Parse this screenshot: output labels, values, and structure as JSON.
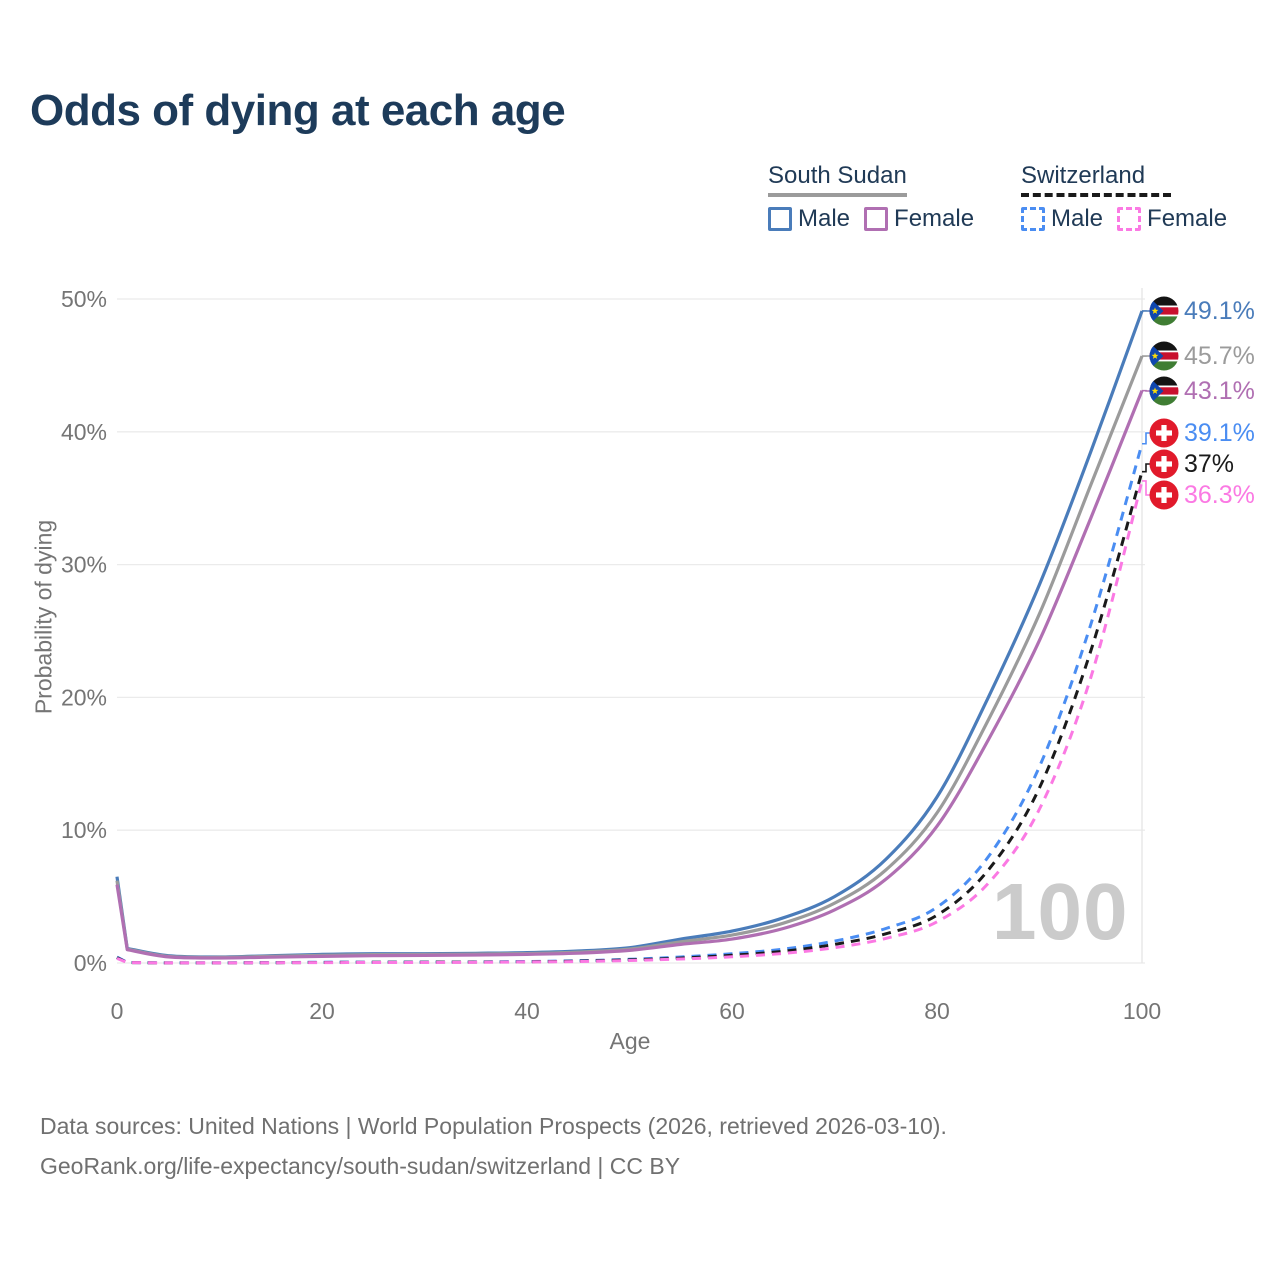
{
  "title": "Odds of dying at each age",
  "legend": {
    "groups": [
      {
        "title": "South Sudan",
        "series_key": "ss_both",
        "items": [
          {
            "label": "Male",
            "series_key": "ss_male"
          },
          {
            "label": "Female",
            "series_key": "ss_female"
          }
        ]
      },
      {
        "title": "Switzerland",
        "series_key": "ch_both",
        "items": [
          {
            "label": "Male",
            "series_key": "ch_male"
          },
          {
            "label": "Female",
            "series_key": "ch_female"
          }
        ]
      }
    ]
  },
  "watermark": "100",
  "y_axis_label": "Probability of dying",
  "x_axis_label": "Age",
  "footer": {
    "line1": "Data sources: United Nations | World Population Prospects (2026, retrieved 2026-03-10).",
    "line2": "GeoRank.org/life-expectancy/south-sudan/switzerland | CC BY"
  },
  "chart_data": {
    "type": "line",
    "title": "Odds of dying at each age",
    "xlabel": "Age",
    "ylabel": "Probability of dying",
    "x_ticks": [
      0,
      20,
      40,
      60,
      80,
      100
    ],
    "y_ticks": [
      "0%",
      "10%",
      "20%",
      "30%",
      "40%",
      "50%"
    ],
    "xlim": [
      0,
      100
    ],
    "ylim_percent": [
      0,
      50
    ],
    "grid": "horizontal",
    "ages": [
      0,
      1,
      5,
      10,
      15,
      20,
      25,
      30,
      35,
      40,
      45,
      50,
      55,
      60,
      65,
      70,
      75,
      80,
      85,
      90,
      95,
      100
    ],
    "series": [
      {
        "id": "ss_male",
        "country": "South Sudan",
        "sex": "Male",
        "color": "#4a7cba",
        "dashed": false,
        "flag": "south-sudan",
        "end_label": "49.1%",
        "values": [
          6.5,
          1.1,
          0.55,
          0.45,
          0.55,
          0.65,
          0.7,
          0.7,
          0.73,
          0.78,
          0.9,
          1.15,
          1.8,
          2.4,
          3.4,
          5.0,
          7.8,
          12.5,
          20.0,
          28.5,
          38.5,
          49.1
        ]
      },
      {
        "id": "ss_both",
        "country": "South Sudan",
        "sex": "Both sexes",
        "color": "#9b9b9b",
        "dashed": false,
        "flag": "south-sudan",
        "end_label": "45.7%",
        "values": [
          6.2,
          1.05,
          0.5,
          0.42,
          0.5,
          0.58,
          0.63,
          0.64,
          0.67,
          0.71,
          0.82,
          1.05,
          1.6,
          2.1,
          3.0,
          4.5,
          7.0,
          11.3,
          18.3,
          26.3,
          36.0,
          45.7
        ]
      },
      {
        "id": "ss_female",
        "country": "South Sudan",
        "sex": "Female",
        "color": "#b06fb2",
        "dashed": false,
        "flag": "south-sudan",
        "end_label": "43.1%",
        "values": [
          5.9,
          1.0,
          0.46,
          0.38,
          0.44,
          0.5,
          0.55,
          0.57,
          0.6,
          0.65,
          0.74,
          0.95,
          1.4,
          1.8,
          2.6,
          4.0,
          6.3,
          10.3,
          16.8,
          24.3,
          33.5,
          43.1
        ]
      },
      {
        "id": "ch_male",
        "country": "Switzerland",
        "sex": "Male",
        "color": "#4a8df2",
        "dashed": true,
        "flag": "switzerland",
        "end_label": "39.1%",
        "values": [
          0.45,
          0.04,
          0.01,
          0.01,
          0.03,
          0.06,
          0.06,
          0.07,
          0.08,
          0.11,
          0.17,
          0.28,
          0.45,
          0.7,
          1.05,
          1.65,
          2.6,
          4.2,
          8.0,
          14.8,
          25.5,
          39.1
        ]
      },
      {
        "id": "ch_both",
        "country": "Switzerland",
        "sex": "Both sexes",
        "color": "#1a1a1a",
        "dashed": true,
        "flag": "switzerland",
        "end_label": "37%",
        "values": [
          0.4,
          0.03,
          0.01,
          0.01,
          0.02,
          0.04,
          0.05,
          0.06,
          0.07,
          0.09,
          0.14,
          0.23,
          0.37,
          0.58,
          0.88,
          1.4,
          2.2,
          3.6,
          7.0,
          13.2,
          23.5,
          37.0
        ]
      },
      {
        "id": "ch_female",
        "country": "Switzerland",
        "sex": "Female",
        "color": "#fb79e3",
        "dashed": true,
        "flag": "switzerland",
        "end_label": "36.3%",
        "values": [
          0.35,
          0.03,
          0.01,
          0.01,
          0.02,
          0.03,
          0.04,
          0.04,
          0.05,
          0.08,
          0.11,
          0.19,
          0.3,
          0.47,
          0.72,
          1.15,
          1.85,
          3.1,
          6.0,
          11.6,
          21.5,
          36.3
        ]
      }
    ],
    "colors": {
      "title_text": "#1d3b5a",
      "legend_text": "#203a56",
      "axis_text": "#757575",
      "gridline": "#ebebeb",
      "watermark": "#cbcbcb",
      "footer_text": "#707070",
      "flag_south_sudan": {
        "black": "#141414",
        "red": "#c8102e",
        "green": "#3f7d33",
        "blue": "#0f47af",
        "star": "#fcdd09",
        "white": "#ffffff"
      },
      "flag_switzerland": {
        "red": "#e11a2b",
        "cross": "#ffffff"
      }
    }
  }
}
